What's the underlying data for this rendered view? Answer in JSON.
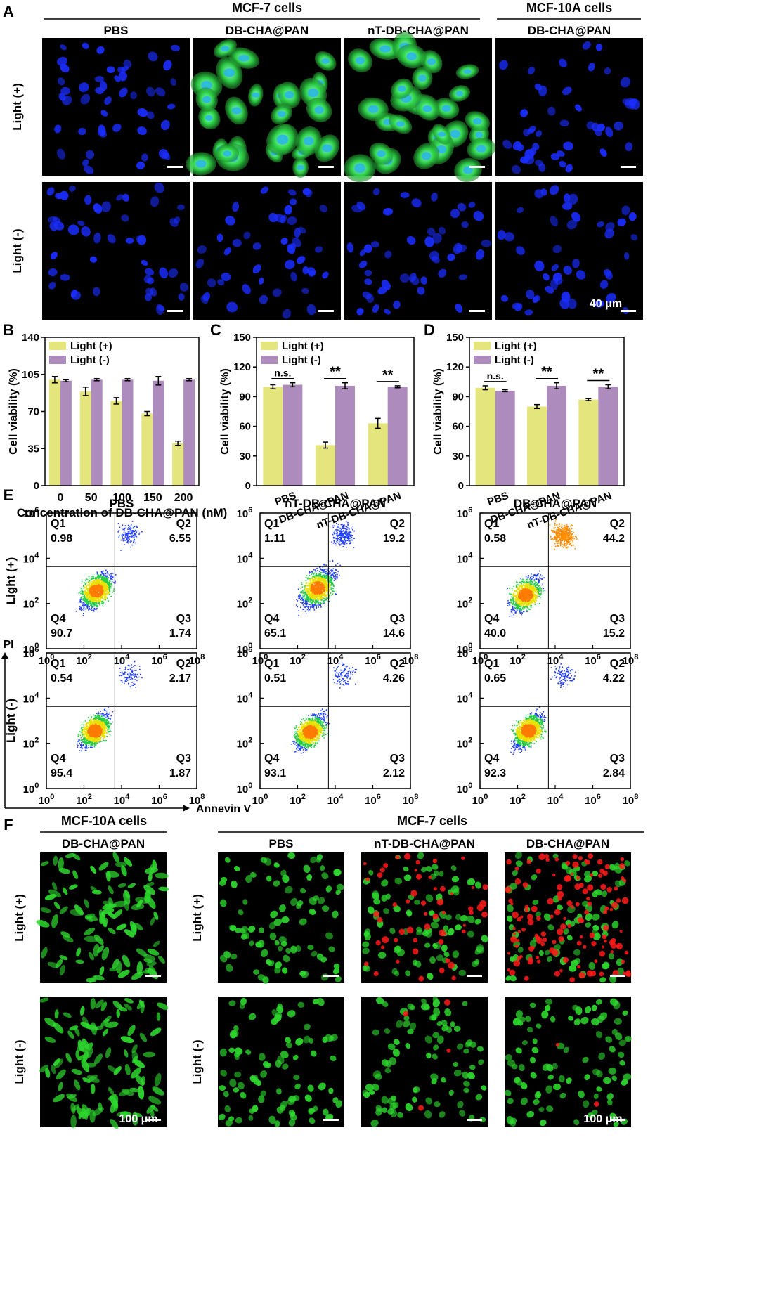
{
  "panel_letters": [
    "A",
    "B",
    "C",
    "D",
    "E",
    "F"
  ],
  "panel_a": {
    "groups": [
      "MCF-7 cells",
      "MCF-10A cells"
    ],
    "columns": [
      "PBS",
      "DB-CHA@PAN",
      "nT-DB-CHA@PAN",
      "DB-CHA@PAN"
    ],
    "rows": [
      "Light (+)",
      "Light (-)"
    ],
    "scale_text": "40 μm"
  },
  "chart_data": [
    {
      "id": "B",
      "type": "bar",
      "categories": [
        "0",
        "50",
        "100",
        "150",
        "200"
      ],
      "series": [
        {
          "name": "Light (+)",
          "values": [
            100,
            89,
            80,
            68,
            40
          ],
          "errors": [
            3,
            4,
            3,
            2,
            2
          ]
        },
        {
          "name": "Light (-)",
          "values": [
            99,
            100,
            100,
            99,
            100
          ],
          "errors": [
            1,
            1,
            1,
            4,
            1
          ]
        }
      ],
      "xlabel": "Concentration of DB-CHA@PAN (nM)",
      "ylabel": "Cell viability (%)",
      "ylim": [
        0,
        140
      ],
      "yticks": [
        0,
        35,
        70,
        105,
        140
      ],
      "legend": "top-left",
      "significance": []
    },
    {
      "id": "C",
      "type": "bar",
      "categories": [
        "PBS",
        "DB-CHA@PAN",
        "nT-DB-CHA@PAN"
      ],
      "series": [
        {
          "name": "Light (+)",
          "values": [
            100,
            41,
            63
          ],
          "errors": [
            2,
            3,
            5
          ]
        },
        {
          "name": "Light (-)",
          "values": [
            102,
            101,
            100
          ],
          "errors": [
            2,
            3,
            1
          ]
        }
      ],
      "xlabel": "",
      "ylabel": "Cell viability (%)",
      "ylim": [
        0,
        150
      ],
      "yticks": [
        0,
        30,
        60,
        90,
        120,
        150
      ],
      "legend": "top-left",
      "significance": [
        "n.s.",
        "**",
        "**"
      ]
    },
    {
      "id": "D",
      "type": "bar",
      "categories": [
        "PBS",
        "DB-CHA@PAN",
        "nT-DB-CHA@PAN"
      ],
      "series": [
        {
          "name": "Light (+)",
          "values": [
            99,
            80,
            87
          ],
          "errors": [
            2,
            2,
            1
          ]
        },
        {
          "name": "Light (-)",
          "values": [
            96,
            101,
            100
          ],
          "errors": [
            1,
            3,
            2
          ]
        }
      ],
      "xlabel": "",
      "ylabel": "Cell viability (%)",
      "ylim": [
        0,
        150
      ],
      "yticks": [
        0,
        30,
        60,
        90,
        120,
        150
      ],
      "legend": "top-left",
      "significance": [
        "n.s.",
        "**",
        "**"
      ]
    }
  ],
  "panel_e": {
    "titles": [
      "PBS",
      "nT-DB-CHA@PAN",
      "DB-CHA@PAN"
    ],
    "row_labels": [
      "Light (+)",
      "Light (-)"
    ],
    "y_axis_title": "PI",
    "x_axis_title": "Annevin V",
    "tick_labels": [
      "0",
      "2",
      "4",
      "6",
      "8"
    ],
    "plots": [
      {
        "q1": "0.98",
        "q2": "6.55",
        "q3": "1.74",
        "q4": "90.7"
      },
      {
        "q1": "1.11",
        "q2": "19.2",
        "q3": "14.6",
        "q4": "65.1"
      },
      {
        "q1": "0.58",
        "q2": "44.2",
        "q3": "15.2",
        "q4": "40.0"
      },
      {
        "q1": "0.54",
        "q2": "2.17",
        "q3": "1.87",
        "q4": "95.4"
      },
      {
        "q1": "0.51",
        "q2": "4.26",
        "q3": "2.12",
        "q4": "93.1"
      },
      {
        "q1": "0.65",
        "q2": "4.22",
        "q3": "2.84",
        "q4": "92.3"
      }
    ]
  },
  "panel_f": {
    "group_left": "MCF-10A cells",
    "group_right": "MCF-7 cells",
    "columns": [
      "DB-CHA@PAN",
      "PBS",
      "nT-DB-CHA@PAN",
      "DB-CHA@PAN"
    ],
    "rows": [
      "Light (+)",
      "Light (-)"
    ],
    "scale_text": "100 μm"
  },
  "colors": {
    "light_plus": "#e5e57d",
    "light_minus": "#ae8bbd",
    "nucleus": "#1a2dff",
    "calcein": "#2ed82e",
    "dead": "#ff1a1a"
  }
}
